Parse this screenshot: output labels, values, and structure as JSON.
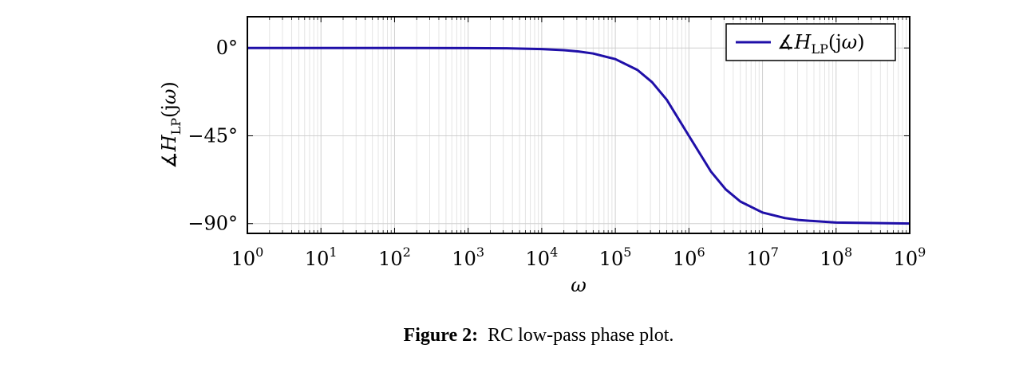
{
  "chart_data": {
    "type": "line",
    "xscale": "log",
    "xlim": [
      1,
      1000000000
    ],
    "ylim": [
      -95,
      16
    ],
    "xlabel": "ω",
    "ylabel": "∡H_LP(jω)",
    "x_ticks": [
      {
        "base": "10",
        "exp": "0",
        "value": 1
      },
      {
        "base": "10",
        "exp": "1",
        "value": 10
      },
      {
        "base": "10",
        "exp": "2",
        "value": 100
      },
      {
        "base": "10",
        "exp": "3",
        "value": 1000
      },
      {
        "base": "10",
        "exp": "4",
        "value": 10000
      },
      {
        "base": "10",
        "exp": "5",
        "value": 100000
      },
      {
        "base": "10",
        "exp": "6",
        "value": 1000000
      },
      {
        "base": "10",
        "exp": "7",
        "value": 10000000
      },
      {
        "base": "10",
        "exp": "8",
        "value": 100000000
      },
      {
        "base": "10",
        "exp": "9",
        "value": 1000000000
      }
    ],
    "y_ticks": [
      {
        "label": "0°",
        "value": 0
      },
      {
        "label": "−45°",
        "value": -45
      },
      {
        "label": "−90°",
        "value": -90
      }
    ],
    "grid": true,
    "legend_position": "top-right",
    "series": [
      {
        "name": "∡H_LP(jω)",
        "color": "#1f0fa8",
        "x": [
          1,
          10,
          100,
          1000,
          3162,
          10000,
          20000,
          31623,
          50000,
          100000,
          200000,
          316228,
          500000,
          1000000,
          2000000,
          3162278,
          5000000,
          10000000,
          20000000,
          31622777,
          100000000,
          1000000000
        ],
        "y": [
          0,
          -0.001,
          -0.006,
          -0.06,
          -0.18,
          -0.57,
          -1.15,
          -1.81,
          -2.86,
          -5.71,
          -11.31,
          -17.55,
          -26.57,
          -45,
          -63.43,
          -72.45,
          -78.69,
          -84.29,
          -87.14,
          -88.19,
          -89.43,
          -89.94
        ]
      }
    ]
  },
  "legend": {
    "symbol": "∡",
    "var": "H",
    "sub": "LP",
    "arg_open": "(j",
    "arg_var": "ω",
    "arg_close": ")"
  },
  "ylabel_parts": {
    "symbol": "∡",
    "var": "H",
    "sub": "LP",
    "arg_open": "(j",
    "arg_var": "ω",
    "arg_close": ")"
  },
  "caption": {
    "label": "Figure 2:",
    "text": "RC low-pass phase plot."
  }
}
